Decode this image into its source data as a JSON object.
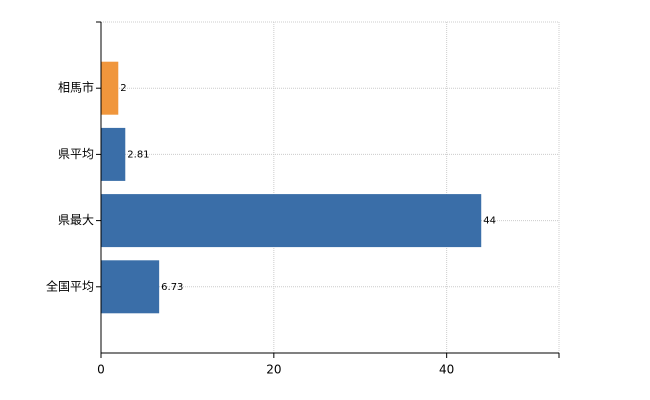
{
  "chart_data": {
    "type": "bar",
    "orientation": "horizontal",
    "categories": [
      "相馬市",
      "県平均",
      "県最大",
      "全国平均"
    ],
    "values": [
      2,
      2.81,
      44,
      6.73
    ],
    "colors": [
      "#f0963c",
      "#3a6ea8",
      "#3a6ea8",
      "#3a6ea8"
    ],
    "xlim": [
      0,
      53
    ],
    "xticks": [
      0,
      20,
      40
    ],
    "grid": true
  }
}
